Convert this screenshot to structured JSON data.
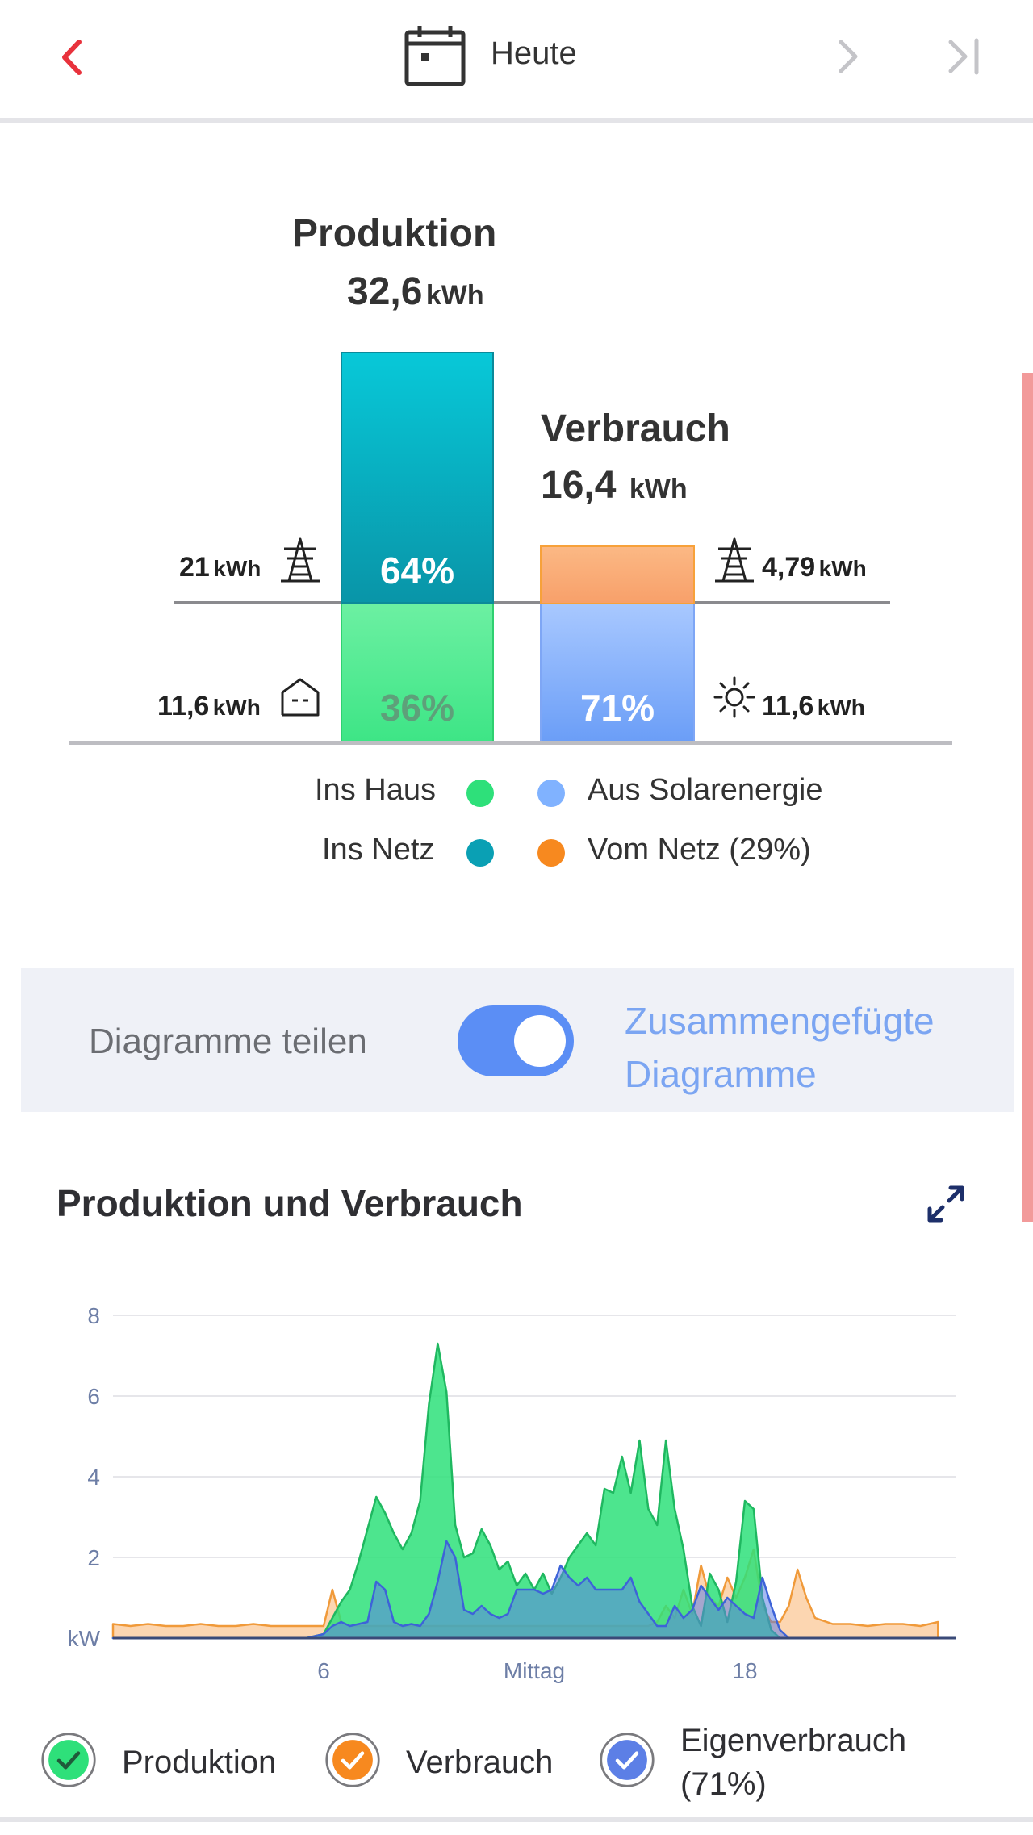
{
  "header": {
    "date_label": "Heute",
    "icons": {
      "back": "chevron-left-icon",
      "calendar": "calendar-icon",
      "next": "chevron-right-icon",
      "last": "skip-to-end-icon"
    },
    "accent_color": "#e8323c"
  },
  "summary": {
    "production": {
      "title": "Produktion",
      "value": "32,6",
      "unit": "kWh",
      "to_grid": {
        "value": "21",
        "unit": "kWh",
        "percent": "64%",
        "fraction": 0.64
      },
      "to_house": {
        "value": "11,6",
        "unit": "kWh",
        "percent": "36%",
        "fraction": 0.36
      }
    },
    "consumption": {
      "title": "Verbrauch",
      "value": "16,4",
      "unit": "kWh",
      "from_grid": {
        "value": "4,79",
        "unit": "kWh",
        "fraction": 0.29
      },
      "from_solar": {
        "value": "11,6",
        "unit": "kWh",
        "percent": "71%",
        "fraction": 0.71
      }
    },
    "legend": {
      "ins_haus": "Ins Haus",
      "ins_netz": "Ins Netz",
      "aus_solar": "Aus Solarenergie",
      "vom_netz": "Vom Netz (29%)"
    },
    "colors": {
      "ins_haus": "#2ee07a",
      "ins_netz": "#0aa0b4",
      "aus_solar": "#80b2ff",
      "vom_netz": "#f7891f"
    }
  },
  "toggle": {
    "label": "Diagramme teilen",
    "state": true,
    "merged_label_line1": "Zusammengefügte",
    "merged_label_line2": "Diagramme"
  },
  "chart_section": {
    "title": "Produktion und Verbrauch",
    "expand_icon": "expand-icon"
  },
  "chart_data": {
    "type": "area",
    "ylabel": "kW",
    "ylim": [
      0,
      8
    ],
    "yticks": [
      "2",
      "4",
      "6",
      "8"
    ],
    "xlim": [
      0,
      24
    ],
    "xticks": [
      {
        "x": 6,
        "label": "6"
      },
      {
        "x": 12,
        "label": "Mittag"
      },
      {
        "x": 18,
        "label": "18"
      }
    ],
    "grid": true,
    "x": [
      0,
      0.5,
      1,
      1.5,
      2,
      2.5,
      3,
      3.5,
      4,
      4.5,
      5,
      5.5,
      6,
      6.25,
      6.5,
      6.75,
      7,
      7.25,
      7.5,
      7.75,
      8,
      8.25,
      8.5,
      8.75,
      9,
      9.25,
      9.5,
      9.75,
      10,
      10.25,
      10.5,
      10.75,
      11,
      11.25,
      11.5,
      11.75,
      12,
      12.25,
      12.5,
      12.75,
      13,
      13.25,
      13.5,
      13.75,
      14,
      14.25,
      14.5,
      14.75,
      15,
      15.25,
      15.5,
      15.75,
      16,
      16.25,
      16.5,
      16.75,
      17,
      17.25,
      17.5,
      17.75,
      18,
      18.25,
      18.5,
      18.75,
      19,
      19.25,
      19.5,
      19.75,
      20,
      20.5,
      21,
      21.5,
      22,
      22.5,
      23,
      23.5
    ],
    "series": [
      {
        "name": "Produktion",
        "color": "#2ee07a",
        "values": [
          0,
          0,
          0,
          0,
          0,
          0,
          0,
          0,
          0,
          0,
          0,
          0,
          0.1,
          0.5,
          0.9,
          1.2,
          1.9,
          2.7,
          3.5,
          3.1,
          2.6,
          2.2,
          2.6,
          3.4,
          5.8,
          7.3,
          6.1,
          2.8,
          2.0,
          2.1,
          2.7,
          2.3,
          1.7,
          1.9,
          1.3,
          1.6,
          1.2,
          1.6,
          1.1,
          1.5,
          2.0,
          2.3,
          2.6,
          2.3,
          3.7,
          3.6,
          4.5,
          3.6,
          4.9,
          3.2,
          2.8,
          4.9,
          3.2,
          2.2,
          0.8,
          0.3,
          1.6,
          1.2,
          0.4,
          1.4,
          3.4,
          3.2,
          1.0,
          0.2,
          0,
          0,
          0,
          0,
          0,
          0,
          0,
          0,
          0,
          0,
          0,
          0
        ]
      },
      {
        "name": "Verbrauch",
        "color": "#f7891f",
        "values": [
          0.35,
          0.3,
          0.35,
          0.3,
          0.3,
          0.35,
          0.3,
          0.3,
          0.35,
          0.3,
          0.3,
          0.3,
          0.3,
          1.2,
          0.4,
          0.3,
          0.3,
          0.3,
          0.3,
          0.3,
          0.3,
          0.3,
          0.3,
          0.3,
          0.3,
          0.3,
          0.3,
          0.3,
          0.3,
          0.3,
          0.3,
          0.3,
          0.3,
          0.3,
          0.3,
          0.3,
          0.3,
          0.3,
          0.3,
          0.3,
          0.3,
          0.3,
          0.3,
          0.3,
          0.3,
          0.3,
          0.3,
          0.3,
          0.3,
          0.3,
          0.4,
          0.8,
          0.5,
          1.2,
          0.6,
          1.8,
          1.0,
          0.8,
          1.5,
          1.0,
          1.5,
          2.2,
          0.8,
          0.4,
          0.4,
          0.8,
          1.7,
          1.0,
          0.5,
          0.35,
          0.35,
          0.3,
          0.35,
          0.35,
          0.3,
          0.4
        ]
      },
      {
        "name": "Eigenverbrauch (71%)",
        "color": "#5c7fe6",
        "values": [
          0,
          0,
          0,
          0,
          0,
          0,
          0,
          0,
          0,
          0,
          0,
          0,
          0.1,
          0.3,
          0.4,
          0.3,
          0.35,
          0.4,
          1.4,
          1.2,
          0.4,
          0.3,
          0.35,
          0.3,
          0.6,
          1.4,
          2.4,
          2.0,
          0.7,
          0.6,
          0.8,
          0.6,
          0.5,
          0.6,
          1.2,
          1.2,
          1.2,
          1.1,
          1.2,
          1.8,
          1.5,
          1.3,
          1.5,
          1.2,
          1.2,
          1.2,
          1.2,
          1.5,
          0.9,
          0.6,
          0.3,
          0.3,
          0.8,
          0.5,
          0.7,
          1.3,
          1.0,
          0.7,
          1.0,
          0.8,
          0.6,
          0.5,
          1.5,
          0.8,
          0.2,
          0,
          0,
          0,
          0,
          0,
          0,
          0,
          0,
          0,
          0,
          0
        ]
      }
    ]
  },
  "bottom_legend": {
    "produktion": "Produktion",
    "verbrauch": "Verbrauch",
    "eigen_line1": "Eigenverbrauch",
    "eigen_line2": "(71%)",
    "check_icon": "check-icon"
  }
}
